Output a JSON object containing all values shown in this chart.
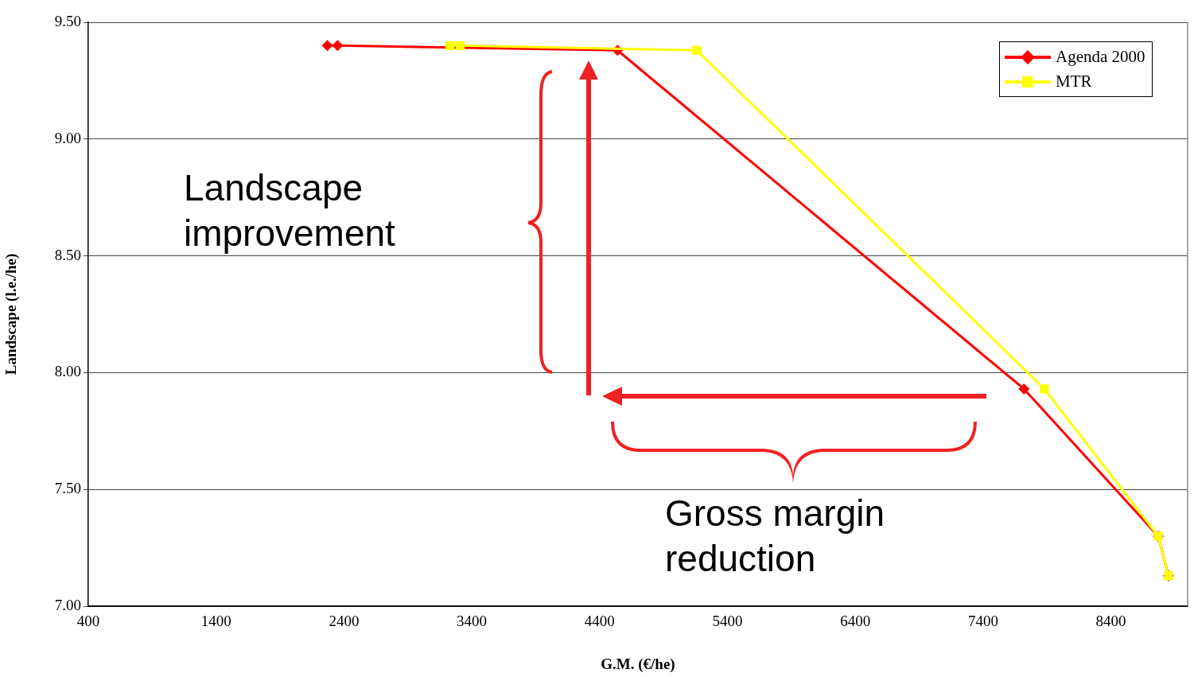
{
  "chart_data": {
    "type": "line",
    "xlabel": "G.M. (€/he)",
    "ylabel": "Landscape (l.e./he)",
    "series": [
      {
        "name": "Agenda 2000",
        "color": "#ff0000",
        "marker": "diamond",
        "x": [
          2270,
          2350,
          4540,
          7720,
          8770,
          8850
        ],
        "values": [
          9.4,
          9.4,
          9.38,
          7.93,
          7.3,
          7.13
        ]
      },
      {
        "name": "MTR",
        "color": "#ffff00",
        "marker": "square",
        "x": [
          3230,
          3310,
          5160,
          7880,
          8770,
          8850
        ],
        "values": [
          9.4,
          9.4,
          9.38,
          7.93,
          7.3,
          7.13
        ]
      }
    ],
    "xlim": [
      400,
      9000
    ],
    "xticks": [
      400,
      1400,
      2400,
      3400,
      4400,
      5400,
      6400,
      7400,
      8400
    ],
    "ylim": [
      7,
      9.5
    ],
    "yticks": [
      {
        "value": 7,
        "label": "7.00"
      },
      {
        "value": 7.5,
        "label": "7.50"
      },
      {
        "value": 8,
        "label": "8.00"
      },
      {
        "value": 8.5,
        "label": "8.50"
      },
      {
        "value": 9,
        "label": "9.00"
      },
      {
        "value": 9.5,
        "label": "9.50"
      }
    ],
    "grid": "y",
    "legend": "top right",
    "line_style": "solid",
    "annotations": [
      "Landscape improvement",
      "Gross margin reduction"
    ]
  }
}
